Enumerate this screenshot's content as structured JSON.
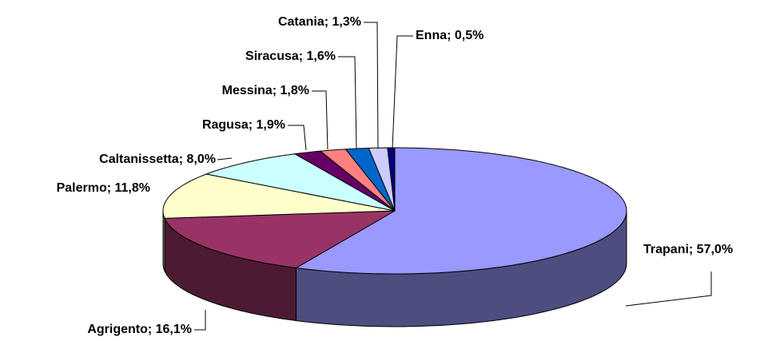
{
  "chart_data": {
    "type": "pie3d",
    "values": [
      57.0,
      16.1,
      11.8,
      8.0,
      1.9,
      1.8,
      1.6,
      1.3,
      0.5
    ],
    "value_labels": [
      "Trapani; 57,0%",
      "Agrigento; 16,1%",
      "Palermo; 11,8%",
      "Caltanissetta; 8,0%",
      "Ragusa; 1,9%",
      "Messina; 1,8%",
      "Siracusa; 1,6%",
      "Catania; 1,3%",
      "Enna; 0,5%"
    ],
    "colors": [
      "#9999ff",
      "#993366",
      "#ffffcc",
      "#ccffff",
      "#660066",
      "#ff8080",
      "#0066cc",
      "#ccccff",
      "#000080"
    ]
  }
}
